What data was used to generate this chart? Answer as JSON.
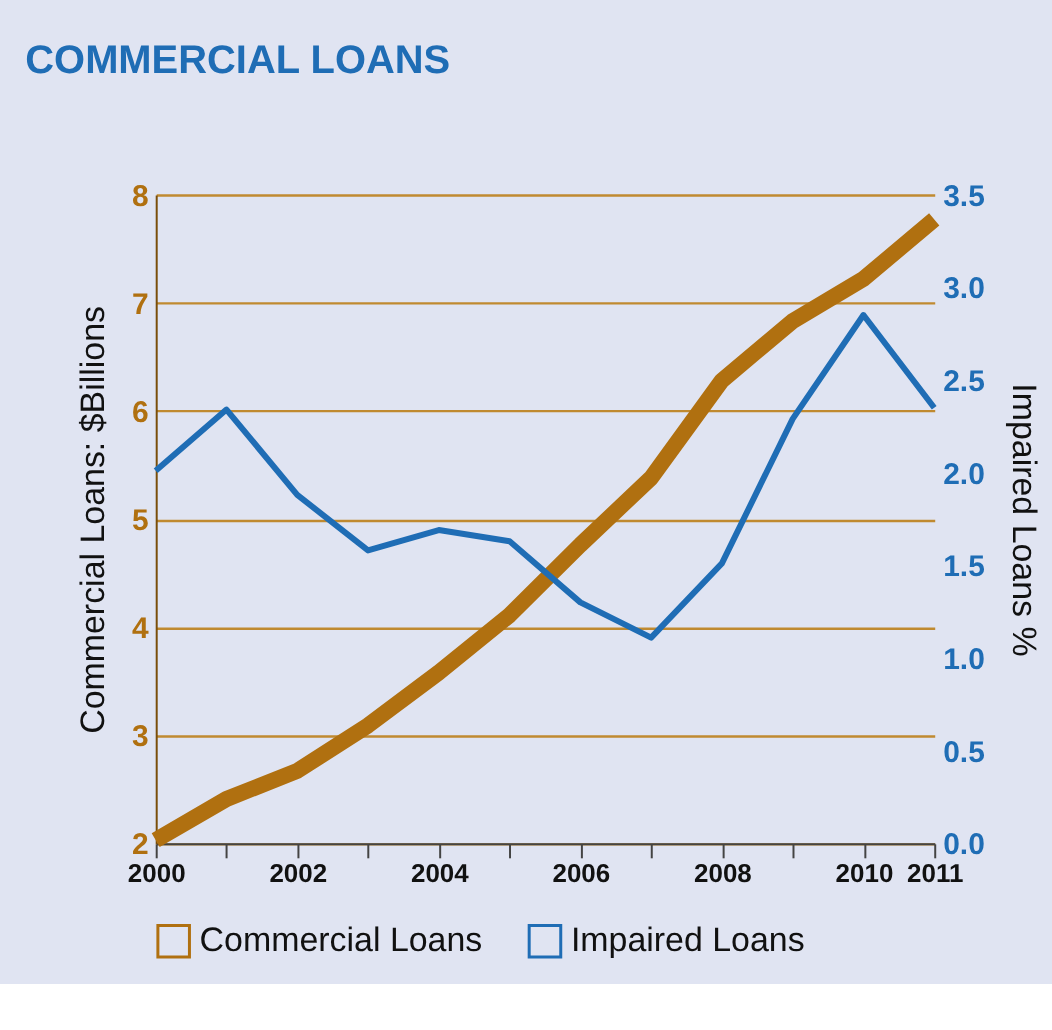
{
  "chart_data": {
    "type": "line",
    "title": "COMMERCIAL LOANS",
    "ylabel": "Commercial Loans: $Billions",
    "y2label": "Impaired Loans %",
    "x": [
      2000,
      2001,
      2002,
      2003,
      2004,
      2005,
      2006,
      2007,
      2008,
      2009,
      2010,
      2011
    ],
    "xlim": [
      2000,
      2011
    ],
    "xticks": [
      2000,
      {
        "value": 2001,
        "label": null
      },
      2002,
      {
        "value": 2003,
        "label": null
      },
      2004,
      {
        "value": 2005,
        "label": null
      },
      2006,
      {
        "value": 2007,
        "label": null
      },
      2008,
      {
        "value": 2009,
        "label": null
      },
      2010,
      2011
    ],
    "ylim": [
      2,
      8
    ],
    "yticks": [
      2,
      3,
      4,
      5,
      6,
      7,
      8
    ],
    "y2lim": [
      0,
      3.5
    ],
    "y2ticks": [
      {
        "value": 0,
        "label": "0.0"
      },
      0.5,
      {
        "value": 1,
        "label": "1.0"
      },
      1.5,
      {
        "value": 2,
        "label": "2.0"
      },
      2.5,
      {
        "value": 3,
        "label": "3.0"
      },
      3.5
    ],
    "series": [
      {
        "name": "Commercial Loans",
        "color": "#b07010",
        "values": [
          2.03,
          2.41,
          2.67,
          3.09,
          3.58,
          4.11,
          4.76,
          5.38,
          6.28,
          6.83,
          7.22,
          7.77
        ]
      },
      {
        "name": "Impaired Loans",
        "color": "#1f6db5",
        "axis": "y2",
        "values": [
          2.01,
          2.34,
          1.88,
          1.58,
          1.69,
          1.63,
          1.3,
          1.11,
          1.51,
          2.29,
          2.85,
          2.35
        ]
      }
    ],
    "grid": "y",
    "legend": "bottom",
    "marker": "none",
    "line_style": "solid"
  }
}
